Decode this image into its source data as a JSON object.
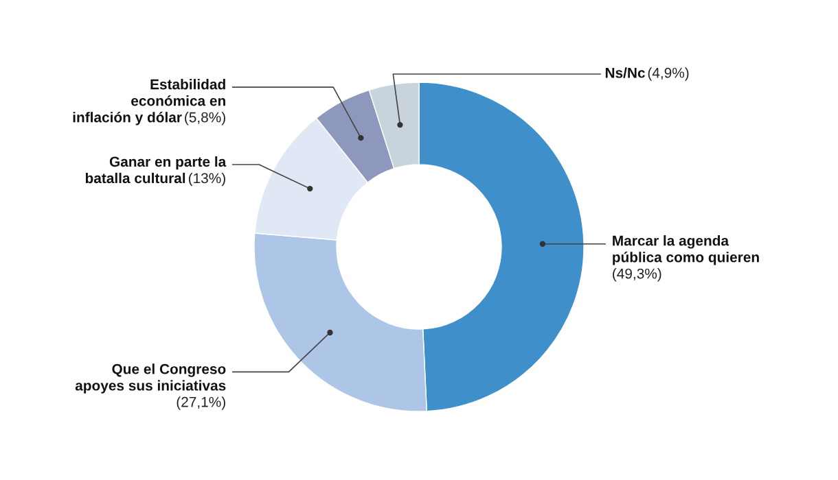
{
  "chart_data": {
    "type": "donut",
    "categories": [
      "Marcar la agenda\npública como quieren",
      "Que el Congreso\napoyes sus iniciativas",
      "Ganar en parte la\nbatalla cultural",
      "Estabilidad\neconómica en\ninflación y dólar",
      "Ns/Nc"
    ],
    "values": [
      49.3,
      27.1,
      13,
      5.8,
      4.9
    ],
    "colors": [
      "#3f8fcb",
      "#adc5e6",
      "#e1e8f5",
      "#8e98bd",
      "#c8d3dc"
    ],
    "value_labels": [
      "(49,3%)",
      "(27,1%)",
      "(13%)",
      "(5,8%)",
      "(4,9%)"
    ]
  }
}
